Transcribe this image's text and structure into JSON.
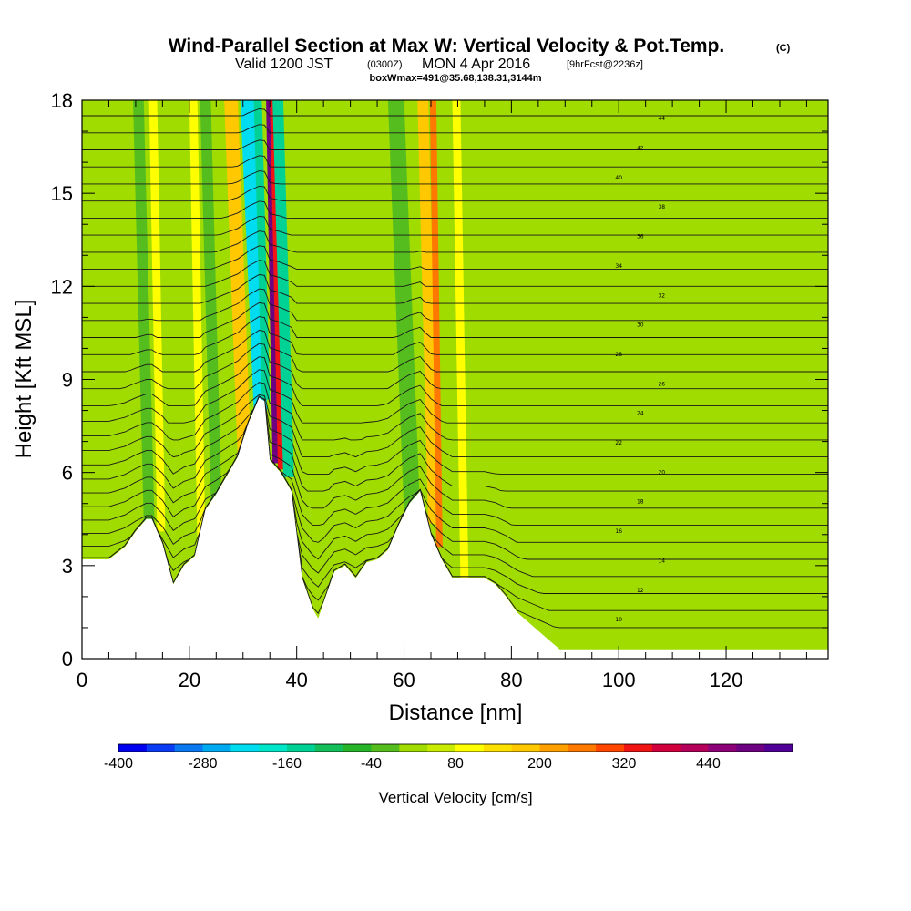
{
  "header": {
    "title": "Wind-Parallel Section at Max W: Vertical Velocity & Pot.Temp.",
    "title_mark": "(C)",
    "valid_prefix": "Valid 1200 JST",
    "valid_utc": "(0300Z)",
    "valid_date": "MON 4 Apr 2016",
    "forecast_note": "[9hrFcst@2236z]",
    "box_info": "boxWmax=491@35.68,138.31,3144m"
  },
  "colorbar": {
    "title": "Vertical Velocity [cm/s]",
    "tick_labels": [
      "-400",
      "-280",
      "-160",
      "-40",
      "80",
      "200",
      "320",
      "440"
    ],
    "colors": [
      "#0000f0",
      "#0a3cf5",
      "#0a78f0",
      "#00aaf0",
      "#00dcf0",
      "#00e6c8",
      "#00d296",
      "#14be5a",
      "#28b428",
      "#55be1e",
      "#a0dc00",
      "#c8eb00",
      "#ffff00",
      "#ffe100",
      "#ffc800",
      "#ffa000",
      "#ff7800",
      "#ff4600",
      "#f01414",
      "#d2003c",
      "#b4005a",
      "#8c0078",
      "#6e0082",
      "#500096"
    ],
    "levels_cm_s": [
      -400,
      -360,
      -320,
      -280,
      -240,
      -200,
      -160,
      -120,
      -80,
      -40,
      0,
      40,
      80,
      120,
      160,
      200,
      240,
      280,
      320,
      360,
      400,
      440,
      480,
      520
    ]
  },
  "chart_data": {
    "type": "heatmap",
    "title": "Wind-Parallel Section at Max W: Vertical Velocity & Pot.Temp.",
    "xlabel": "Distance [nm]",
    "ylabel": "Height [Kft MSL]",
    "xlim": [
      0,
      139
    ],
    "ylim": [
      0,
      18
    ],
    "x_ticks": [
      0,
      20,
      40,
      60,
      80,
      100,
      120
    ],
    "y_ticks": [
      0,
      3,
      6,
      9,
      12,
      15,
      18
    ],
    "fill_variable": "Vertical Velocity [cm/s]",
    "contour_variable": "Pot.Temp.",
    "grid": false,
    "background_w_cm_s": 30,
    "terrain_kft": {
      "x": [
        0,
        5,
        8,
        10,
        12,
        13,
        15,
        17,
        19,
        21,
        23,
        25,
        27,
        29,
        31,
        33,
        34,
        35,
        37,
        39,
        41,
        43,
        44,
        45,
        47,
        49,
        51,
        53,
        55,
        57,
        59,
        61,
        63,
        65,
        67,
        69,
        71,
        73,
        75,
        77,
        79,
        81,
        83,
        85,
        87,
        89,
        95,
        110,
        139
      ],
      "y": [
        3.2,
        3.2,
        3.6,
        4.1,
        4.5,
        4.5,
        3.7,
        2.4,
        3.0,
        3.3,
        4.8,
        5.3,
        5.9,
        6.5,
        7.6,
        8.4,
        8.3,
        6.4,
        6.0,
        5.4,
        2.6,
        1.6,
        1.3,
        1.8,
        2.8,
        3.0,
        2.6,
        3.1,
        3.2,
        3.5,
        4.3,
        5.0,
        5.4,
        4.0,
        3.2,
        2.6,
        2.6,
        2.6,
        2.6,
        2.4,
        2.0,
        1.5,
        1.2,
        0.9,
        0.6,
        0.3,
        0.3,
        0.3,
        0.3
      ]
    },
    "vertical_velocity_bands": [
      {
        "x_center": 14.0,
        "width_nm": 1.5,
        "w_cm_s": 100
      },
      {
        "x_center": 21.5,
        "width_nm": 1.5,
        "w_cm_s": 90
      },
      {
        "x_center": 29.0,
        "width_nm": 2.5,
        "w_cm_s": 180
      },
      {
        "x_center": 32.0,
        "width_nm": 2.5,
        "w_cm_s": -230
      },
      {
        "x_center": 33.5,
        "width_nm": 1.5,
        "w_cm_s": -130
      },
      {
        "x_center": 35.5,
        "width_nm": 1.2,
        "w_cm_s": 491
      },
      {
        "x_center": 36.5,
        "width_nm": 1.5,
        "w_cm_s": 350
      },
      {
        "x_center": 37.5,
        "width_nm": 2.0,
        "w_cm_s": -150
      },
      {
        "x_center": 64.5,
        "width_nm": 2.0,
        "w_cm_s": 180
      },
      {
        "x_center": 66.0,
        "width_nm": 1.2,
        "w_cm_s": 260
      },
      {
        "x_center": 70.5,
        "width_nm": 1.5,
        "w_cm_s": 110
      },
      {
        "x_center": 24.0,
        "width_nm": 2.0,
        "w_cm_s": -30
      },
      {
        "x_center": 11.5,
        "width_nm": 2.0,
        "w_cm_s": -30
      },
      {
        "x_center": 60.0,
        "width_nm": 3.0,
        "w_cm_s": -30
      }
    ],
    "theta_contours": {
      "base_height_kft": 1.0,
      "spacing_kft": 0.55,
      "count": 31,
      "labels": [
        "10",
        "12",
        "14",
        "16",
        "18",
        "20",
        "22",
        "24",
        "26",
        "28",
        "30",
        "32",
        "34",
        "36",
        "38",
        "40",
        "42",
        "44"
      ]
    }
  }
}
